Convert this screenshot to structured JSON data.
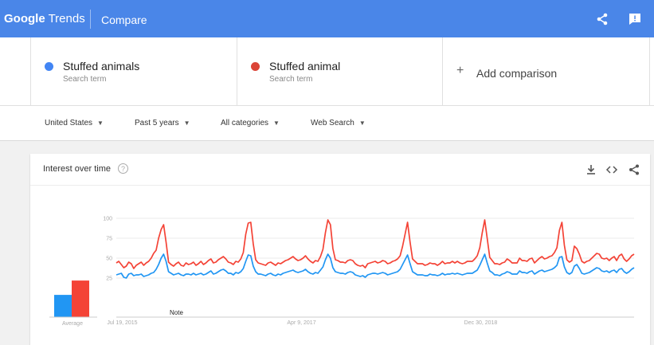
{
  "header": {
    "logo_google": "Google",
    "logo_trends": "Trends",
    "title": "Compare",
    "share_icon": "share-icon",
    "feedback_icon": "feedback-icon"
  },
  "terms": [
    {
      "name": "Stuffed animals",
      "type": "Search term",
      "color": "#4285f4"
    },
    {
      "name": "Stuffed animal",
      "type": "Search term",
      "color": "#db4437"
    }
  ],
  "add_comparison": {
    "plus": "+",
    "label": "Add comparison"
  },
  "filters": [
    {
      "label": "United States",
      "caret": "▼"
    },
    {
      "label": "Past 5 years",
      "caret": "▼"
    },
    {
      "label": "All categories",
      "caret": "▼"
    },
    {
      "label": "Web Search",
      "caret": "▼"
    }
  ],
  "card": {
    "title": "Interest over time",
    "help": "?",
    "icons": [
      "download-icon",
      "embed-icon",
      "share-icon"
    ]
  },
  "chart_data": {
    "type": "line",
    "title": "",
    "xlabel": "",
    "ylabel": "",
    "ylim": [
      0,
      100
    ],
    "yticks": [
      "100",
      "75",
      "50",
      "25"
    ],
    "xticks": [
      "Jul 19, 2015",
      "Apr 9, 2017",
      "Dec 30, 2018"
    ],
    "x_range": [
      "2015-06-28",
      "2020-06-21"
    ],
    "grid": true,
    "annotation": "Note",
    "average_label": "Average",
    "averages": [
      {
        "series": "Stuffed animals",
        "value": 31
      },
      {
        "series": "Stuffed animal",
        "value": 51
      }
    ],
    "series": [
      {
        "name": "Stuffed animals",
        "color": "#2196f3",
        "values": [
          29,
          30,
          31,
          26,
          25,
          30,
          31,
          28,
          29,
          29,
          30,
          27,
          28,
          29,
          31,
          32,
          36,
          42,
          50,
          55,
          46,
          33,
          31,
          29,
          30,
          31,
          29,
          28,
          30,
          30,
          29,
          31,
          29,
          30,
          31,
          29,
          30,
          32,
          34,
          30,
          31,
          33,
          35,
          36,
          34,
          31,
          31,
          29,
          32,
          31,
          33,
          37,
          46,
          54,
          53,
          40,
          33,
          30,
          30,
          29,
          28,
          30,
          31,
          29,
          28,
          30,
          29,
          31,
          32,
          33,
          34,
          35,
          33,
          32,
          33,
          34,
          36,
          33,
          31,
          30,
          32,
          31,
          35,
          39,
          48,
          55,
          50,
          38,
          33,
          32,
          31,
          31,
          30,
          32,
          33,
          32,
          29,
          28,
          27,
          28,
          26,
          29,
          30,
          31,
          31,
          30,
          31,
          32,
          31,
          29,
          30,
          31,
          32,
          33,
          36,
          42,
          48,
          54,
          43,
          33,
          31,
          29,
          29,
          29,
          28,
          28,
          30,
          29,
          29,
          28,
          29,
          31,
          29,
          30,
          30,
          31,
          30,
          31,
          30,
          29,
          30,
          31,
          31,
          31,
          33,
          35,
          41,
          48,
          55,
          44,
          34,
          32,
          29,
          29,
          28,
          30,
          31,
          33,
          32,
          30,
          30,
          30,
          34,
          32,
          32,
          31,
          33,
          34,
          30,
          32,
          34,
          35,
          33,
          34,
          35,
          36,
          38,
          41,
          51,
          52,
          39,
          32,
          30,
          32,
          40,
          42,
          37,
          31,
          30,
          31,
          32,
          34,
          36,
          38,
          37,
          34,
          33,
          34,
          32,
          34,
          35,
          32,
          36,
          37,
          33,
          31,
          33,
          36,
          38
        ]
      },
      {
        "name": "Stuffed animal",
        "color": "#f44336",
        "values": [
          44,
          46,
          42,
          38,
          40,
          45,
          43,
          37,
          41,
          43,
          45,
          41,
          44,
          46,
          50,
          56,
          60,
          75,
          86,
          92,
          70,
          45,
          42,
          40,
          43,
          45,
          41,
          40,
          44,
          42,
          43,
          45,
          41,
          43,
          46,
          42,
          44,
          47,
          49,
          44,
          45,
          48,
          50,
          52,
          49,
          45,
          44,
          42,
          46,
          45,
          49,
          57,
          80,
          94,
          95,
          68,
          48,
          44,
          43,
          42,
          41,
          44,
          45,
          43,
          41,
          44,
          43,
          45,
          47,
          48,
          50,
          52,
          49,
          47,
          48,
          50,
          53,
          49,
          46,
          44,
          47,
          46,
          52,
          61,
          82,
          98,
          92,
          62,
          48,
          47,
          45,
          45,
          44,
          47,
          48,
          47,
          43,
          41,
          40,
          41,
          38,
          43,
          44,
          45,
          46,
          44,
          45,
          47,
          46,
          43,
          44,
          46,
          47,
          49,
          53,
          65,
          80,
          95,
          70,
          49,
          46,
          43,
          43,
          43,
          41,
          42,
          44,
          43,
          43,
          41,
          43,
          46,
          43,
          44,
          44,
          46,
          44,
          46,
          44,
          43,
          44,
          46,
          46,
          46,
          49,
          53,
          63,
          82,
          98,
          75,
          51,
          47,
          43,
          43,
          42,
          44,
          45,
          49,
          47,
          44,
          44,
          44,
          50,
          47,
          47,
          46,
          49,
          50,
          44,
          47,
          50,
          52,
          49,
          50,
          52,
          53,
          57,
          63,
          85,
          95,
          66,
          48,
          45,
          47,
          65,
          62,
          55,
          46,
          44,
          46,
          47,
          50,
          53,
          56,
          55,
          50,
          49,
          50,
          47,
          50,
          52,
          47,
          53,
          55,
          49,
          46,
          49,
          53,
          55
        ]
      }
    ]
  }
}
